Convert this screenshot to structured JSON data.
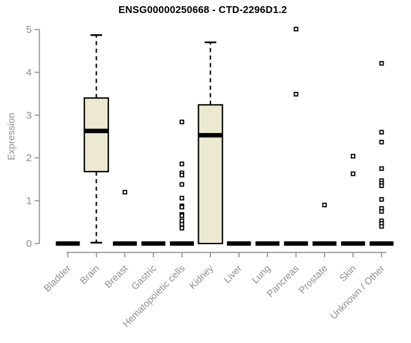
{
  "page": {
    "background": "#ffffff"
  },
  "chart_data": {
    "type": "boxplot",
    "title": "ENSG00000250668 - CTD-2296D1.2",
    "ylabel": "Expression",
    "xlabel": "",
    "ylim": [
      0,
      5
    ],
    "yticks": [
      0,
      1,
      2,
      3,
      4,
      5
    ],
    "grid": false,
    "legend": "none",
    "x_tick_rotation_deg": 45,
    "colors": {
      "box_fill": "#EDE8D1",
      "box_stroke": "#000000",
      "median": "#000000",
      "whisker": "#000000",
      "outlier_stroke": "#000000",
      "outlier_fill": "#ffffff",
      "axis": "#8a8a8a",
      "tick_text": "#8f8f8f",
      "title_text": "#000000"
    },
    "categories": [
      "Bladder",
      "Brain",
      "Breast",
      "Gastric",
      "Hematopoietic cells",
      "Kidney",
      "Liver",
      "Lung",
      "Pancreas",
      "Prostate",
      "Skin",
      "Unknown / Other"
    ],
    "series": [
      {
        "label": "Bladder",
        "q1": 0,
        "median": 0,
        "q3": 0,
        "whisker_low": 0,
        "whisker_high": 0,
        "outliers": []
      },
      {
        "label": "Brain",
        "q1": 1.68,
        "median": 2.63,
        "q3": 3.4,
        "whisker_low": 0.02,
        "whisker_high": 4.87,
        "outliers": []
      },
      {
        "label": "Breast",
        "q1": 0,
        "median": 0,
        "q3": 0,
        "whisker_low": 0,
        "whisker_high": 0,
        "outliers": [
          1.2
        ]
      },
      {
        "label": "Gastric",
        "q1": 0,
        "median": 0,
        "q3": 0,
        "whisker_low": 0,
        "whisker_high": 0,
        "outliers": []
      },
      {
        "label": "Hematopoietic cells",
        "q1": 0,
        "median": 0,
        "q3": 0,
        "whisker_low": 0,
        "whisker_high": 0,
        "outliers": [
          2.84,
          1.86,
          1.65,
          1.6,
          1.38,
          1.06,
          0.88,
          0.85,
          0.68,
          0.65,
          0.53,
          0.45,
          0.36
        ]
      },
      {
        "label": "Kidney",
        "q1": 0,
        "median": 2.53,
        "q3": 3.24,
        "whisker_low": 0,
        "whisker_high": 4.7,
        "outliers": []
      },
      {
        "label": "Liver",
        "q1": 0,
        "median": 0,
        "q3": 0,
        "whisker_low": 0,
        "whisker_high": 0,
        "outliers": []
      },
      {
        "label": "Lung",
        "q1": 0,
        "median": 0,
        "q3": 0,
        "whisker_low": 0,
        "whisker_high": 0,
        "outliers": []
      },
      {
        "label": "Pancreas",
        "q1": 0,
        "median": 0,
        "q3": 0,
        "whisker_low": 0,
        "whisker_high": 0,
        "outliers": [
          5.01,
          3.49
        ]
      },
      {
        "label": "Prostate",
        "q1": 0,
        "median": 0,
        "q3": 0,
        "whisker_low": 0,
        "whisker_high": 0,
        "outliers": [
          0.9
        ]
      },
      {
        "label": "Skin",
        "q1": 0,
        "median": 0,
        "q3": 0,
        "whisker_low": 0,
        "whisker_high": 0,
        "outliers": [
          2.04,
          1.63
        ]
      },
      {
        "label": "Unknown / Other",
        "q1": 0,
        "median": 0,
        "q3": 0,
        "whisker_low": 0,
        "whisker_high": 0,
        "outliers": [
          4.21,
          2.6,
          2.37,
          1.75,
          1.47,
          1.41,
          1.35,
          1.03,
          0.82,
          0.75,
          0.53,
          0.47,
          0.4
        ]
      }
    ]
  }
}
